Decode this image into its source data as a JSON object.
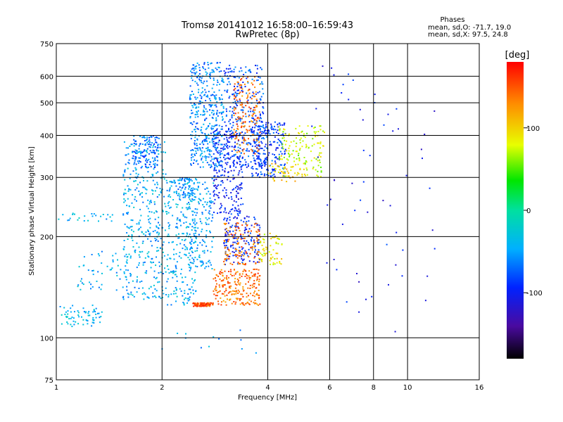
{
  "chart_data": {
    "type": "scatter",
    "title": "Tromsø 20141012 16:58:00–16:59:43",
    "subtitle": "RwPretec (8p)",
    "xlabel": "Frequency [MHz]",
    "ylabel": "Stationary phase Virtual Height [km]",
    "x_scale": "log",
    "y_scale": "log",
    "xlim": [
      1,
      16
    ],
    "ylim": [
      75,
      750
    ],
    "x_ticks": [
      1,
      2,
      4,
      6,
      8,
      10,
      16
    ],
    "x_tick_labels": [
      "1",
      "2",
      "4",
      "6",
      "8",
      "10",
      "16"
    ],
    "y_ticks": [
      75,
      100,
      200,
      300,
      400,
      500,
      600,
      750
    ],
    "y_tick_labels": [
      "75",
      "100",
      "200",
      "300",
      "400",
      "500",
      "600",
      "750"
    ],
    "grid": true,
    "phases_box": {
      "title": "Phases",
      "line1": "mean, sd,O: -71.7, 19.0",
      "line2": "mean, sd,X:  97.5, 24.8"
    },
    "colorbar": {
      "label": "[deg]",
      "range": [
        -180,
        180
      ],
      "ticks": [
        100,
        0,
        -100
      ],
      "tick_labels": [
        "100",
        "0",
        "-100"
      ]
    },
    "clusters": [
      {
        "x": [
          1.0,
          1.35
        ],
        "y": [
          108,
          125
        ],
        "phase": -40,
        "n": 70
      },
      {
        "x": [
          1.0,
          1.45
        ],
        "y": [
          222,
          235
        ],
        "phase": -40,
        "n": 25
      },
      {
        "x": [
          1.15,
          1.6
        ],
        "y": [
          138,
          185
        ],
        "phase": -45,
        "n": 55
      },
      {
        "x": [
          1.55,
          2.05
        ],
        "y": [
          130,
          400
        ],
        "phase": -45,
        "n": 380
      },
      {
        "x": [
          1.65,
          1.95
        ],
        "y": [
          320,
          400
        ],
        "phase": -70,
        "n": 110
      },
      {
        "x": [
          2.05,
          2.5
        ],
        "y": [
          125,
          300
        ],
        "phase": -45,
        "n": 260
      },
      {
        "x": [
          2.2,
          2.4
        ],
        "y": [
          260,
          300
        ],
        "phase": -60,
        "n": 40
      },
      {
        "x": [
          2.4,
          3.0
        ],
        "y": [
          320,
          660
        ],
        "phase": -60,
        "n": 420
      },
      {
        "x": [
          2.4,
          2.8
        ],
        "y": [
          160,
          300
        ],
        "phase": -50,
        "n": 160
      },
      {
        "x": [
          2.8,
          3.4
        ],
        "y": [
          230,
          420
        ],
        "phase": -100,
        "n": 220
      },
      {
        "x": [
          3.0,
          3.8
        ],
        "y": [
          165,
          230
        ],
        "phase": -95,
        "n": 170
      },
      {
        "x": [
          3.0,
          3.9
        ],
        "y": [
          320,
          650
        ],
        "phase": -80,
        "n": 300
      },
      {
        "x": [
          3.6,
          4.5
        ],
        "y": [
          300,
          440
        ],
        "phase": -85,
        "n": 230
      },
      {
        "x": [
          2.45,
          2.8
        ],
        "y": [
          124,
          127
        ],
        "phase": 150,
        "n": 90
      },
      {
        "x": [
          2.8,
          3.8
        ],
        "y": [
          125,
          160
        ],
        "phase": 140,
        "n": 220
      },
      {
        "x": [
          3.0,
          3.8
        ],
        "y": [
          165,
          220
        ],
        "phase": 140,
        "n": 120
      },
      {
        "x": [
          3.2,
          3.8
        ],
        "y": [
          350,
          600
        ],
        "phase": 140,
        "n": 150
      },
      {
        "x": [
          3.8,
          4.4
        ],
        "y": [
          165,
          205
        ],
        "phase": 90,
        "n": 60
      },
      {
        "x": [
          4.3,
          5.8
        ],
        "y": [
          300,
          430
        ],
        "phase": 75,
        "n": 150
      },
      {
        "x": [
          4.0,
          5.0
        ],
        "y": [
          290,
          330
        ],
        "phase": 100,
        "n": 40
      },
      {
        "x": [
          5.3,
          12.0
        ],
        "y": [
          100,
          660
        ],
        "phase": -100,
        "n": 60
      },
      {
        "x": [
          2.0,
          4.0
        ],
        "y": [
          90,
          110
        ],
        "phase": -50,
        "n": 12
      }
    ]
  }
}
